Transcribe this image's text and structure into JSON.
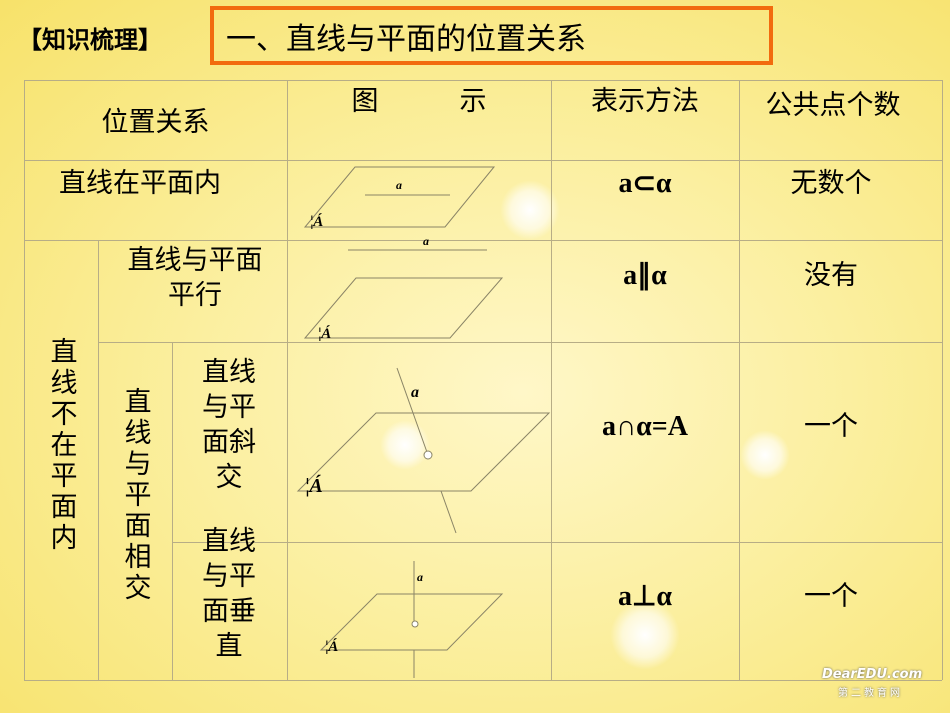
{
  "header": {
    "tag": "【知识梳理】",
    "title": "一、直线与平面的位置关系"
  },
  "table": {
    "headers": [
      "位置关系",
      "图　　　示",
      "表示方法",
      "公共点个数"
    ],
    "rows": [
      {
        "relation": "直线在平面内",
        "notation": "a⊂α",
        "common_points": "无数个"
      },
      {
        "relation": "直线与平面平行",
        "notation": "a∥α",
        "common_points": "没有"
      },
      {
        "relation": "直线与平面斜交",
        "notation": "a∩α=A",
        "common_points": "一个"
      },
      {
        "relation": "直线与平面垂直",
        "notation": "a⊥α",
        "common_points": "一个"
      }
    ],
    "group_not_in_plane": "直线不在平面内",
    "group_intersect": "直线与平面相交"
  },
  "diagram_labels": {
    "line": "a",
    "plane": "¦Á"
  },
  "watermark": {
    "text": "DearEDU.com",
    "sub": "第二教育网"
  },
  "colors": {
    "title_border": "#f26b0e",
    "grid": "#b7ad86",
    "background": "#fbef9f"
  }
}
